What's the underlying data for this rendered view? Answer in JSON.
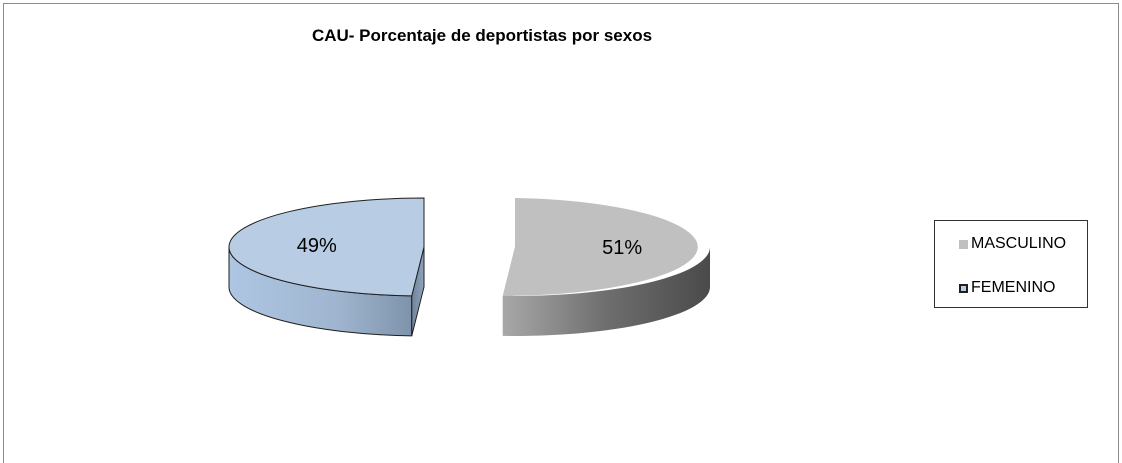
{
  "chart_data": {
    "type": "pie",
    "title": "CAU- Porcentaje de deportistas por sexos",
    "categories": [
      "MASCULINO",
      "FEMENINO"
    ],
    "values": [
      51,
      49
    ],
    "labels": [
      "51%",
      "49%"
    ],
    "colors": {
      "MASCULINO": "#c0c0c0",
      "FEMENINO": "#b8cce4"
    },
    "style": "3d-exploded",
    "legend_position": "right"
  },
  "legend": {
    "items": [
      {
        "label": "MASCULINO",
        "color": "#c0c0c0",
        "border": "#c0c0c0"
      },
      {
        "label": "FEMENINO",
        "color": "#b8cce4",
        "border": "#1f1f1f"
      }
    ]
  }
}
